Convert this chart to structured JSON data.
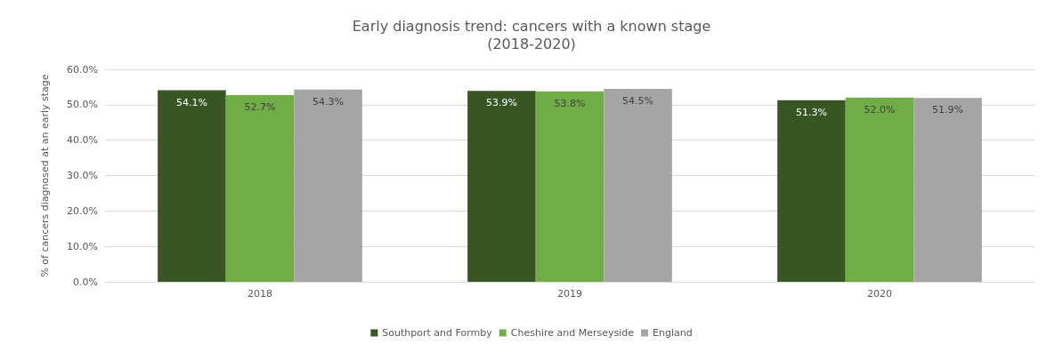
{
  "chart_data": {
    "type": "bar",
    "title": "Early diagnosis trend: cancers with a known stage",
    "subtitle": "(2018-2020)",
    "ylabel": "% of cancers diagnosed at an early stage",
    "categories": [
      "2018",
      "2019",
      "2020"
    ],
    "series": [
      {
        "name": "Southport and Formby",
        "color": "#375623",
        "values": [
          54.1,
          53.9,
          51.3
        ],
        "value_labels": [
          "54.1%",
          "53.9%",
          "51.3%"
        ]
      },
      {
        "name": "Cheshire and Merseyside",
        "color": "#70ad47",
        "values": [
          52.7,
          53.8,
          52.0
        ],
        "value_labels": [
          "52.7%",
          "53.8%",
          "52.0%"
        ]
      },
      {
        "name": "England",
        "color": "#a5a5a5",
        "values": [
          54.3,
          54.5,
          51.9
        ],
        "value_labels": [
          "54.3%",
          "54.5%",
          "51.9%"
        ]
      }
    ],
    "ylim": [
      0,
      60
    ],
    "yticks": [
      {
        "value": 0,
        "label": "0.0%"
      },
      {
        "value": 10,
        "label": "10.0%"
      },
      {
        "value": 20,
        "label": "20.0%"
      },
      {
        "value": 30,
        "label": "30.0%"
      },
      {
        "value": 40,
        "label": "40.0%"
      },
      {
        "value": 50,
        "label": "50.0%"
      },
      {
        "value": 60,
        "label": "60.0%"
      }
    ],
    "grid": "y",
    "legend": "bottom"
  }
}
